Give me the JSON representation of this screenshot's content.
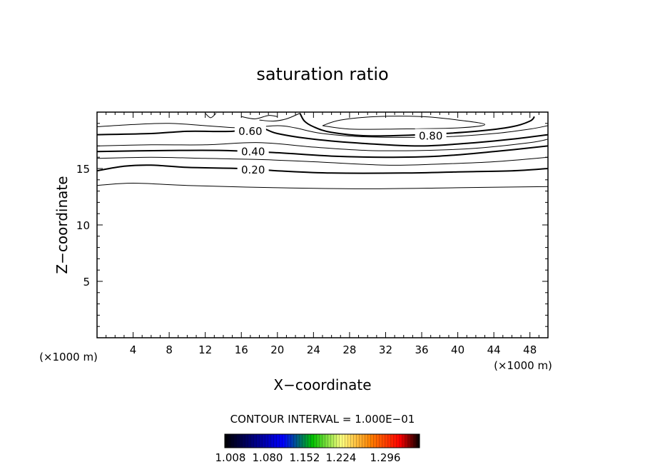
{
  "chart_data": {
    "type": "contour",
    "title": "saturation ratio",
    "xlabel": "X−coordinate",
    "ylabel": "Z−coordinate",
    "x_unit_label_left": "(×1000 m)",
    "x_unit_label_right": "(×1000 m)",
    "xlim": [
      0,
      50
    ],
    "ylim": [
      0,
      20
    ],
    "x_ticks": [
      "4",
      "8",
      "12",
      "16",
      "20",
      "24",
      "28",
      "32",
      "36",
      "40",
      "44",
      "48"
    ],
    "y_ticks": [
      "5",
      "10",
      "15"
    ],
    "contour_interval_label": "CONTOUR INTERVAL = 1.000E−01",
    "contours": [
      {
        "level": 0.1,
        "label": "",
        "bold": false,
        "points": [
          [
            0,
            13.5
          ],
          [
            4,
            13.7
          ],
          [
            10,
            13.5
          ],
          [
            20,
            13.3
          ],
          [
            30,
            13.2
          ],
          [
            40,
            13.3
          ],
          [
            50,
            13.4
          ]
        ]
      },
      {
        "level": 0.2,
        "label": "0.20",
        "bold": true,
        "points": [
          [
            0,
            14.8
          ],
          [
            3,
            15.2
          ],
          [
            6,
            15.3
          ],
          [
            10,
            15.1
          ],
          [
            16,
            15.0
          ],
          [
            20,
            14.8
          ],
          [
            26,
            14.6
          ],
          [
            34,
            14.6
          ],
          [
            40,
            14.7
          ],
          [
            46,
            14.8
          ],
          [
            50,
            15.0
          ]
        ]
      },
      {
        "level": 0.3,
        "label": "",
        "bold": false,
        "points": [
          [
            0,
            15.9
          ],
          [
            6,
            16.0
          ],
          [
            12,
            15.9
          ],
          [
            18,
            15.8
          ],
          [
            24,
            15.6
          ],
          [
            32,
            15.3
          ],
          [
            38,
            15.4
          ],
          [
            44,
            15.6
          ],
          [
            50,
            16.0
          ]
        ]
      },
      {
        "level": 0.4,
        "label": "0.40",
        "bold": true,
        "points": [
          [
            0,
            16.5
          ],
          [
            8,
            16.6
          ],
          [
            14,
            16.6
          ],
          [
            20,
            16.4
          ],
          [
            26,
            16.1
          ],
          [
            32,
            16.0
          ],
          [
            38,
            16.1
          ],
          [
            44,
            16.5
          ],
          [
            50,
            17.0
          ]
        ]
      },
      {
        "level": 0.5,
        "label": "",
        "bold": false,
        "points": [
          [
            0,
            17.0
          ],
          [
            6,
            17.1
          ],
          [
            12,
            17.1
          ],
          [
            18,
            17.3
          ],
          [
            24,
            16.9
          ],
          [
            30,
            16.6
          ],
          [
            36,
            16.6
          ],
          [
            42,
            16.8
          ],
          [
            48,
            17.3
          ],
          [
            50,
            17.6
          ]
        ]
      },
      {
        "level": 0.6,
        "label": "0.60",
        "bold": true,
        "points": [
          [
            0,
            18.0
          ],
          [
            6,
            18.1
          ],
          [
            10,
            18.3
          ],
          [
            15,
            18.3
          ],
          [
            18,
            18.6
          ],
          [
            20,
            18.1
          ],
          [
            24,
            17.6
          ],
          [
            30,
            17.2
          ],
          [
            36,
            17.0
          ],
          [
            42,
            17.3
          ],
          [
            46,
            17.6
          ],
          [
            50,
            18.0
          ]
        ]
      },
      {
        "level": 0.7,
        "label": "",
        "bold": false,
        "points": [
          [
            0,
            18.7
          ],
          [
            4,
            18.9
          ],
          [
            8,
            19.0
          ],
          [
            12,
            18.8
          ],
          [
            16,
            18.6
          ],
          [
            20,
            18.8
          ],
          [
            22,
            18.6
          ],
          [
            25,
            18.1
          ],
          [
            30,
            17.8
          ],
          [
            38,
            17.8
          ],
          [
            44,
            18.1
          ],
          [
            48,
            18.5
          ],
          [
            50,
            18.8
          ]
        ]
      },
      {
        "level": 0.8,
        "label": "0.80",
        "bold": true,
        "points": [
          [
            22.5,
            19.9
          ],
          [
            23,
            19.2
          ],
          [
            24,
            18.7
          ],
          [
            26,
            18.2
          ],
          [
            30,
            17.9
          ],
          [
            36,
            18.0
          ],
          [
            42,
            18.3
          ],
          [
            46,
            18.7
          ],
          [
            48,
            19.2
          ],
          [
            48.5,
            19.6
          ]
        ]
      },
      {
        "level": 0.9,
        "label": "",
        "bold": false,
        "points": [
          [
            25,
            18.8
          ],
          [
            27,
            19.3
          ],
          [
            31,
            19.6
          ],
          [
            36,
            19.6
          ],
          [
            40,
            19.3
          ],
          [
            43,
            18.9
          ],
          [
            40,
            18.6
          ],
          [
            33,
            18.5
          ],
          [
            28,
            18.5
          ],
          [
            25,
            18.8
          ]
        ]
      },
      {
        "level": 0.9,
        "label": "",
        "bold": false,
        "points": [
          [
            12,
            19.9
          ],
          [
            12.6,
            19.5
          ],
          [
            13.2,
            19.9
          ]
        ]
      },
      {
        "level": 0.7,
        "label": "",
        "bold": false,
        "points": [
          [
            16,
            19.6
          ],
          [
            17.5,
            19.4
          ],
          [
            19,
            19.7
          ],
          [
            20,
            19.6
          ]
        ]
      },
      {
        "level": 0.6,
        "label": "",
        "bold": false,
        "points": [
          [
            18,
            19.3
          ],
          [
            19.5,
            19.2
          ],
          [
            21,
            19.4
          ],
          [
            22.5,
            19.9
          ]
        ]
      }
    ],
    "colorbar": {
      "labels": [
        "1.008",
        "1.080",
        "1.152",
        "1.224",
        "1.296"
      ],
      "colors": [
        "#000000",
        "#0000ff",
        "#00ff00",
        "#ffff00",
        "#ff0000",
        "#000000"
      ]
    }
  }
}
